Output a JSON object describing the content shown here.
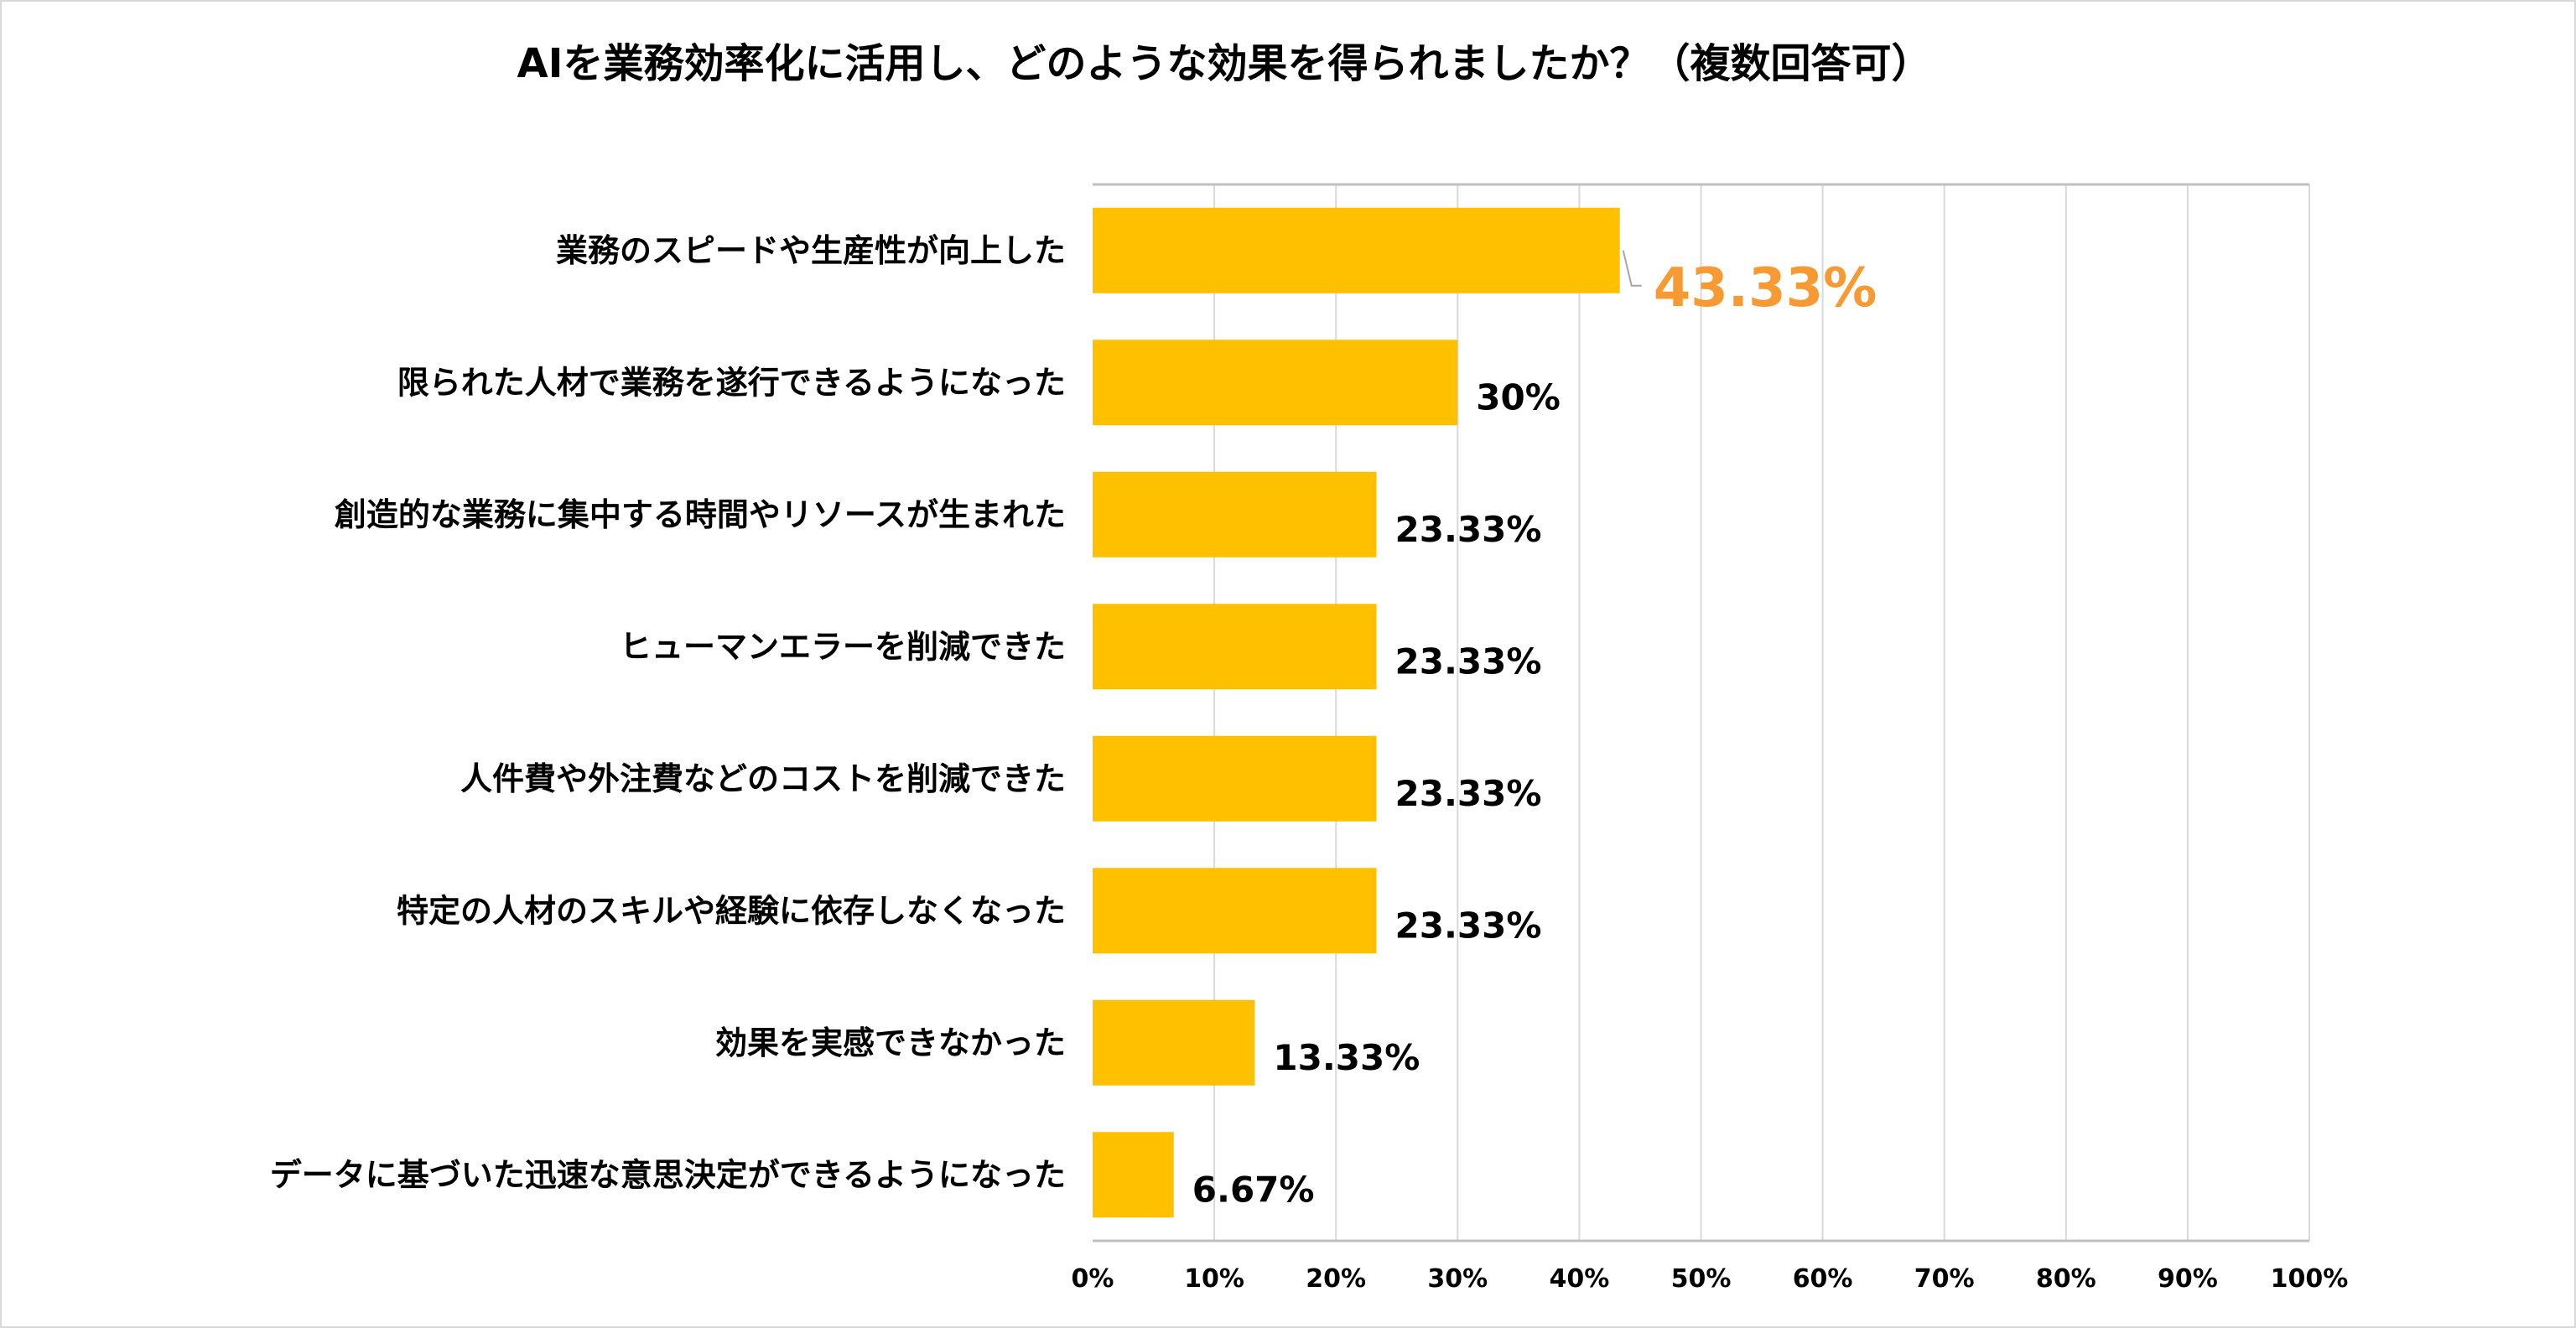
{
  "chart_data": {
    "type": "bar",
    "orientation": "horizontal",
    "title": "AIを業務効率化に活用し、どのような効果を得られましたか？（複数回答可）",
    "categories": [
      "業務のスピードや生産性が向上した",
      "限られた人材で業務を遂行できるようになった",
      "創造的な業務に集中する時間やリソースが生まれた",
      "ヒューマンエラーを削減できた",
      "人件費や外注費などのコストを削減できた",
      "特定の人材のスキルや経験に依存しなくなった",
      "効果を実感できなかった",
      "データに基づいた迅速な意思決定ができるようになった"
    ],
    "values": [
      43.33,
      30,
      23.33,
      23.33,
      23.33,
      23.33,
      13.33,
      6.67
    ],
    "value_labels": [
      "43.33%",
      "30%",
      "23.33%",
      "23.33%",
      "23.33%",
      "23.33%",
      "13.33%",
      "6.67%"
    ],
    "highlight_index": 0,
    "xlim": [
      0,
      100
    ],
    "x_ticks": [
      "0%",
      "10%",
      "20%",
      "30%",
      "40%",
      "50%",
      "60%",
      "70%",
      "80%",
      "90%",
      "100%"
    ],
    "xlabel": "",
    "ylabel": "",
    "grid": true,
    "legend": "none",
    "colors": {
      "bar": "#FFC000",
      "highlight_label": "#F79A33",
      "grid": "#d9d9d9"
    }
  }
}
